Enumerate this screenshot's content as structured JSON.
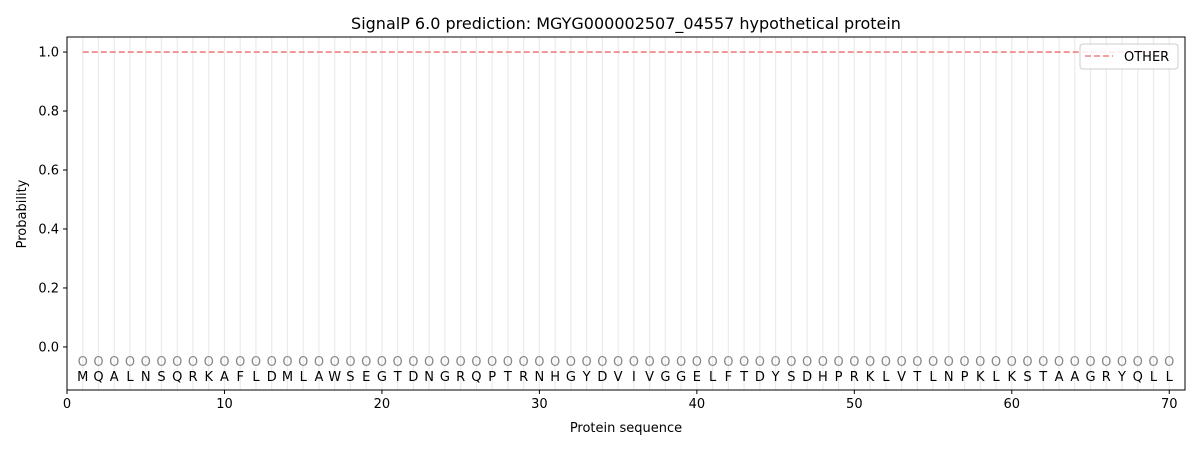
{
  "chart_data": {
    "type": "line",
    "title": "SignalP 6.0 prediction: MGYG000002507_04557 hypothetical protein",
    "xlabel": "Protein sequence",
    "ylabel": "Probability",
    "xlim": [
      0,
      71
    ],
    "ylim": [
      -0.146,
      1.051
    ],
    "xticks": [
      0,
      10,
      20,
      30,
      40,
      50,
      60,
      70
    ],
    "yticks": [
      "0.0",
      "0.2",
      "0.4",
      "0.6",
      "0.8",
      "1.0"
    ],
    "ytick_values": [
      0.0,
      0.2,
      0.4,
      0.6,
      0.8,
      1.0
    ],
    "grid": "vertical lines at each residue",
    "legend_placement": "top-right",
    "sequence": [
      "M",
      "Q",
      "A",
      "L",
      "N",
      "S",
      "Q",
      "R",
      "K",
      "A",
      "F",
      "L",
      "D",
      "M",
      "L",
      "A",
      "W",
      "S",
      "E",
      "G",
      "T",
      "D",
      "N",
      "G",
      "R",
      "Q",
      "P",
      "T",
      "R",
      "N",
      "H",
      "G",
      "Y",
      "D",
      "V",
      "I",
      "V",
      "G",
      "G",
      "E",
      "L",
      "F",
      "T",
      "D",
      "Y",
      "S",
      "D",
      "H",
      "P",
      "R",
      "K",
      "L",
      "V",
      "T",
      "L",
      "N",
      "P",
      "K",
      "L",
      "K",
      "S",
      "T",
      "A",
      "A",
      "G",
      "R",
      "Y",
      "Q",
      "L",
      "L"
    ],
    "region_marker": "O",
    "region_marker_y": -0.05,
    "series": [
      {
        "name": "OTHER",
        "color": "#f08080",
        "style": "dashed",
        "x_start": 1,
        "x_end": 70,
        "value": 1.0
      }
    ]
  }
}
